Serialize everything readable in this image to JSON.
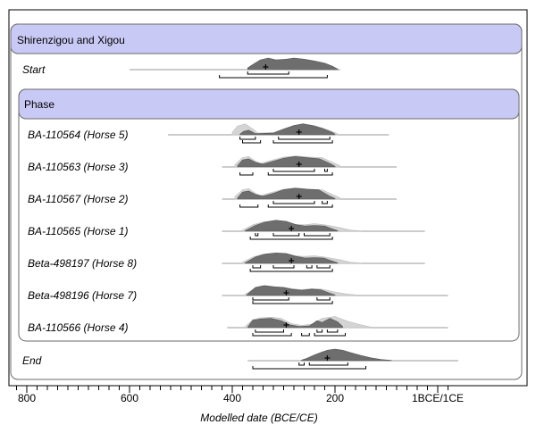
{
  "chart_data": {
    "type": "area",
    "model_title": "Shirenzigou and Xigou",
    "phase_title": "Phase",
    "xlabel": "Modelled date (BCE/CE)",
    "x_axis": {
      "direction": "BCE decreasing left-to-right",
      "range_bce": [
        820,
        -35
      ],
      "major_ticks": [
        {
          "value": 800,
          "label": "800"
        },
        {
          "value": 600,
          "label": "600"
        },
        {
          "value": 400,
          "label": "400"
        },
        {
          "value": 200,
          "label": "200"
        },
        {
          "value": 0,
          "label": "1BCE/1CE"
        }
      ],
      "minor_tick_step": 20
    },
    "colors": {
      "header_band": "#c9c9f5",
      "posterior": "#6e6e6e",
      "prior": "#d4d4d4"
    },
    "rows": [
      {
        "label": "Start",
        "italic": true,
        "group": "model",
        "line": [
          600,
          190
        ],
        "prior": [],
        "posterior": [
          [
            370,
            0.15
          ],
          [
            360,
            0.45
          ],
          [
            345,
            0.85
          ],
          [
            330,
            1.0
          ],
          [
            315,
            0.85
          ],
          [
            295,
            0.9
          ],
          [
            280,
            1.0
          ],
          [
            260,
            0.9
          ],
          [
            240,
            0.75
          ],
          [
            220,
            0.55
          ],
          [
            205,
            0.3
          ],
          [
            195,
            0.05
          ]
        ],
        "median": 335,
        "range68": [
          [
            370,
            290
          ]
        ],
        "range95": [
          [
            425,
            215
          ]
        ]
      },
      {
        "label": "BA-110564 (Horse 5)",
        "italic": true,
        "group": "phase",
        "line": [
          525,
          95
        ],
        "prior": [
          [
            400,
            0.2
          ],
          [
            390,
            0.75
          ],
          [
            375,
            0.95
          ],
          [
            360,
            0.5
          ],
          [
            350,
            0.15
          ],
          [
            320,
            0.2
          ],
          [
            300,
            0.5
          ],
          [
            280,
            0.75
          ],
          [
            260,
            0.9
          ],
          [
            240,
            0.8
          ],
          [
            215,
            0.45
          ],
          [
            195,
            0.1
          ]
        ],
        "posterior": [
          [
            385,
            0.05
          ],
          [
            378,
            0.3
          ],
          [
            368,
            0.4
          ],
          [
            355,
            0.1
          ],
          [
            320,
            0.15
          ],
          [
            300,
            0.5
          ],
          [
            280,
            0.8
          ],
          [
            262,
            0.95
          ],
          [
            245,
            0.8
          ],
          [
            225,
            0.55
          ],
          [
            205,
            0.2
          ],
          [
            200,
            0.05
          ]
        ],
        "median": 270,
        "range68": [
          [
            385,
            355
          ],
          [
            310,
            210
          ]
        ],
        "range95": [
          [
            380,
            345
          ],
          [
            320,
            205
          ]
        ]
      },
      {
        "label": "BA-110563 (Horse 3)",
        "italic": true,
        "group": "phase",
        "line": [
          420,
          80
        ],
        "prior": [
          [
            395,
            0.2
          ],
          [
            380,
            0.8
          ],
          [
            368,
            0.9
          ],
          [
            355,
            0.5
          ],
          [
            345,
            0.3
          ],
          [
            325,
            0.55
          ],
          [
            300,
            0.85
          ],
          [
            275,
            0.95
          ],
          [
            250,
            0.85
          ],
          [
            225,
            0.8
          ],
          [
            205,
            0.4
          ],
          [
            190,
            0.1
          ]
        ],
        "posterior": [
          [
            390,
            0.1
          ],
          [
            380,
            0.6
          ],
          [
            368,
            0.7
          ],
          [
            355,
            0.4
          ],
          [
            340,
            0.25
          ],
          [
            320,
            0.5
          ],
          [
            300,
            0.75
          ],
          [
            278,
            0.9
          ],
          [
            255,
            0.8
          ],
          [
            230,
            0.7
          ],
          [
            210,
            0.3
          ],
          [
            200,
            0.05
          ]
        ],
        "median": 270,
        "range68": [
          [
            320,
            240
          ],
          [
            220,
            215
          ]
        ],
        "range95": [
          [
            385,
            360
          ],
          [
            330,
            205
          ]
        ]
      },
      {
        "label": "BA-110567 (Horse 2)",
        "italic": true,
        "group": "phase",
        "line": [
          420,
          80
        ],
        "prior": [
          [
            395,
            0.2
          ],
          [
            380,
            0.8
          ],
          [
            368,
            0.9
          ],
          [
            355,
            0.5
          ],
          [
            345,
            0.3
          ],
          [
            325,
            0.55
          ],
          [
            300,
            0.85
          ],
          [
            275,
            0.95
          ],
          [
            250,
            0.85
          ],
          [
            225,
            0.8
          ],
          [
            205,
            0.4
          ],
          [
            190,
            0.1
          ]
        ],
        "posterior": [
          [
            390,
            0.1
          ],
          [
            380,
            0.6
          ],
          [
            368,
            0.7
          ],
          [
            355,
            0.4
          ],
          [
            340,
            0.25
          ],
          [
            320,
            0.5
          ],
          [
            300,
            0.8
          ],
          [
            278,
            0.95
          ],
          [
            255,
            0.85
          ],
          [
            232,
            0.8
          ],
          [
            212,
            0.3
          ],
          [
            200,
            0.05
          ]
        ],
        "median": 270,
        "range68": [
          [
            320,
            240
          ],
          [
            225,
            215
          ]
        ],
        "range95": [
          [
            385,
            350
          ],
          [
            330,
            205
          ]
        ]
      },
      {
        "label": "BA-110565 (Horse 1)",
        "italic": true,
        "group": "phase",
        "line": [
          420,
          25
        ],
        "prior": [
          [
            380,
            0.1
          ],
          [
            360,
            0.55
          ],
          [
            340,
            0.8
          ],
          [
            320,
            0.85
          ],
          [
            300,
            0.8
          ],
          [
            280,
            0.6
          ],
          [
            260,
            0.55
          ],
          [
            240,
            0.65
          ],
          [
            220,
            0.55
          ],
          [
            195,
            0.35
          ],
          [
            170,
            0.1
          ],
          [
            150,
            0.02
          ]
        ],
        "posterior": [
          [
            375,
            0.05
          ],
          [
            355,
            0.5
          ],
          [
            335,
            0.8
          ],
          [
            315,
            0.95
          ],
          [
            295,
            0.85
          ],
          [
            275,
            0.55
          ],
          [
            258,
            0.45
          ],
          [
            240,
            0.5
          ],
          [
            220,
            0.45
          ],
          [
            205,
            0.2
          ],
          [
            195,
            0.05
          ]
        ],
        "median": 285,
        "range68": [
          [
            355,
            350
          ],
          [
            320,
            270
          ],
          [
            260,
            210
          ]
        ],
        "range95": [
          [
            365,
            205
          ]
        ]
      },
      {
        "label": "Beta-498197 (Horse 8)",
        "italic": true,
        "group": "phase",
        "line": [
          420,
          25
        ],
        "prior": [
          [
            380,
            0.1
          ],
          [
            360,
            0.55
          ],
          [
            340,
            0.8
          ],
          [
            320,
            0.85
          ],
          [
            300,
            0.8
          ],
          [
            280,
            0.65
          ],
          [
            260,
            0.6
          ],
          [
            240,
            0.65
          ],
          [
            220,
            0.55
          ],
          [
            195,
            0.35
          ],
          [
            170,
            0.1
          ],
          [
            150,
            0.02
          ]
        ],
        "posterior": [
          [
            375,
            0.05
          ],
          [
            355,
            0.55
          ],
          [
            335,
            0.8
          ],
          [
            315,
            0.9
          ],
          [
            295,
            0.85
          ],
          [
            275,
            0.6
          ],
          [
            258,
            0.45
          ],
          [
            240,
            0.5
          ],
          [
            222,
            0.45
          ],
          [
            205,
            0.2
          ],
          [
            195,
            0.05
          ]
        ],
        "median": 285,
        "range68": [
          [
            360,
            345
          ],
          [
            320,
            280
          ],
          [
            255,
            245
          ],
          [
            235,
            210
          ]
        ],
        "range95": [
          [
            365,
            205
          ]
        ]
      },
      {
        "label": "Beta-498196 (Horse 7)",
        "italic": true,
        "group": "phase",
        "line": [
          420,
          -20
        ],
        "prior": [
          [
            375,
            0.1
          ],
          [
            355,
            0.65
          ],
          [
            335,
            0.85
          ],
          [
            315,
            0.75
          ],
          [
            300,
            0.7
          ],
          [
            285,
            0.6
          ],
          [
            265,
            0.5
          ],
          [
            245,
            0.6
          ],
          [
            225,
            0.55
          ],
          [
            200,
            0.3
          ],
          [
            180,
            0.15
          ],
          [
            160,
            0.05
          ]
        ],
        "posterior": [
          [
            372,
            0.05
          ],
          [
            355,
            0.7
          ],
          [
            338,
            0.85
          ],
          [
            318,
            0.75
          ],
          [
            300,
            0.7
          ],
          [
            285,
            0.55
          ],
          [
            265,
            0.45
          ],
          [
            245,
            0.55
          ],
          [
            228,
            0.5
          ],
          [
            210,
            0.2
          ],
          [
            200,
            0.05
          ]
        ],
        "median": 295,
        "range68": [
          [
            360,
            290
          ],
          [
            235,
            210
          ]
        ],
        "range95": [
          [
            360,
            205
          ]
        ]
      },
      {
        "label": "BA-110566 (Horse 4)",
        "italic": true,
        "group": "phase",
        "line": [
          410,
          -20
        ],
        "prior": [
          [
            375,
            0.1
          ],
          [
            360,
            0.7
          ],
          [
            345,
            0.85
          ],
          [
            325,
            0.9
          ],
          [
            305,
            0.8
          ],
          [
            285,
            0.35
          ],
          [
            265,
            0.2
          ],
          [
            245,
            0.3
          ],
          [
            225,
            0.8
          ],
          [
            200,
            0.95
          ],
          [
            175,
            0.55
          ],
          [
            150,
            0.25
          ],
          [
            130,
            0.05
          ]
        ],
        "posterior": [
          [
            370,
            0.05
          ],
          [
            360,
            0.65
          ],
          [
            345,
            0.75
          ],
          [
            325,
            0.8
          ],
          [
            305,
            0.6
          ],
          [
            288,
            0.25
          ],
          [
            270,
            0.1
          ],
          [
            250,
            0.15
          ],
          [
            235,
            0.6
          ],
          [
            225,
            0.45
          ],
          [
            210,
            0.8
          ],
          [
            195,
            0.5
          ],
          [
            185,
            0.1
          ]
        ],
        "median": 295,
        "range68": [
          [
            355,
            300
          ],
          [
            235,
            225
          ],
          [
            215,
            195
          ]
        ],
        "range95": [
          [
            360,
            285
          ],
          [
            265,
            250
          ],
          [
            240,
            180
          ]
        ]
      },
      {
        "label": "End",
        "italic": true,
        "group": "model",
        "line": [
          370,
          -40
        ],
        "prior": [],
        "posterior": [
          [
            265,
            0.05
          ],
          [
            255,
            0.2
          ],
          [
            240,
            0.5
          ],
          [
            225,
            0.75
          ],
          [
            215,
            0.9
          ],
          [
            200,
            1.0
          ],
          [
            185,
            0.9
          ],
          [
            170,
            0.7
          ],
          [
            150,
            0.45
          ],
          [
            130,
            0.25
          ],
          [
            110,
            0.1
          ],
          [
            90,
            0.02
          ]
        ],
        "median": 215,
        "range68": [
          [
            270,
            260
          ],
          [
            250,
            175
          ]
        ],
        "range95": [
          [
            360,
            140
          ]
        ]
      }
    ]
  }
}
